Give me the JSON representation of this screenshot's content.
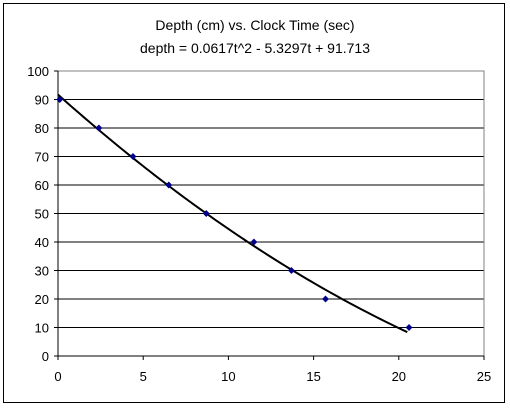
{
  "chart_data": {
    "type": "scatter",
    "title": "Depth (cm) vs. Clock Time (sec)",
    "subtitle": "depth = 0.0617t^2 - 5.3297t + 91.713",
    "xlabel": "",
    "ylabel": "",
    "xlim": [
      0,
      25
    ],
    "ylim": [
      0,
      100
    ],
    "xticks": [
      0,
      5,
      10,
      15,
      20,
      25
    ],
    "yticks": [
      0,
      10,
      20,
      30,
      40,
      50,
      60,
      70,
      80,
      90,
      100
    ],
    "grid": "horizontal",
    "series": [
      {
        "marker": "diamond",
        "color": "#00008b",
        "x": [
          0.1,
          2.4,
          4.4,
          6.5,
          8.7,
          11.5,
          13.7,
          15.7,
          20.6
        ],
        "y": [
          90,
          80,
          70,
          60,
          50,
          40,
          30,
          20,
          10
        ]
      }
    ],
    "trendline": {
      "type": "polynomial",
      "coefficients": [
        0.0617,
        -5.3297,
        91.713
      ],
      "x_range": [
        0,
        20.5
      ],
      "color": "#000000"
    }
  }
}
